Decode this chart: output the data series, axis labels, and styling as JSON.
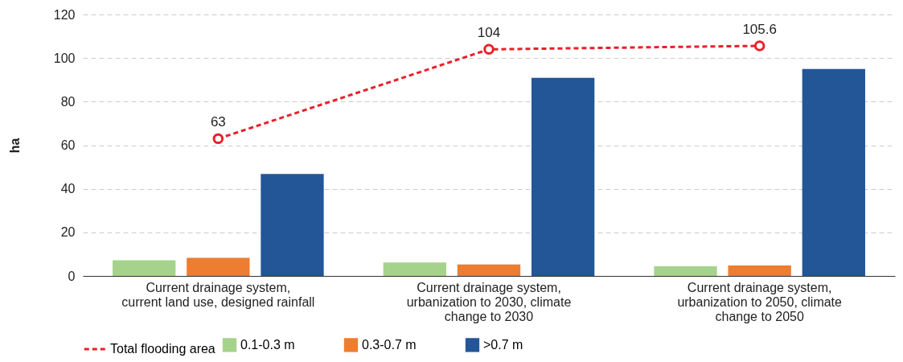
{
  "chart_data": {
    "type": "bar",
    "ylabel": "ha",
    "categories": [
      "Current drainage system,\ncurrent land use, designed rainfall",
      "Current drainage system,\nurbanization to 2030, climate\nchange to 2030",
      "Current drainage system,\nurbanization to 2050, climate\nchange to 2050"
    ],
    "series": [
      {
        "name": "0.1-0.3 m",
        "color": "#a6d38c",
        "values": [
          7.2,
          6.2,
          4.4
        ]
      },
      {
        "name": "0.3-0.7 m",
        "color": "#ed7d31",
        "values": [
          8.3,
          5.3,
          4.8
        ]
      },
      {
        "name": ">0.7 m",
        "color": "#235697",
        "values": [
          46.8,
          90.9,
          95.0
        ]
      },
      {
        "name": "Total flooding area",
        "type": "line",
        "color": "#e8202a",
        "values": [
          63,
          104,
          105.6
        ],
        "marker": "circle",
        "line_style": "dashed",
        "data_labels": true
      }
    ],
    "ylim": [
      0,
      120
    ],
    "yticks": [
      0,
      20,
      40,
      60,
      80,
      100,
      120
    ],
    "grid": "y",
    "legend": "bottom"
  }
}
